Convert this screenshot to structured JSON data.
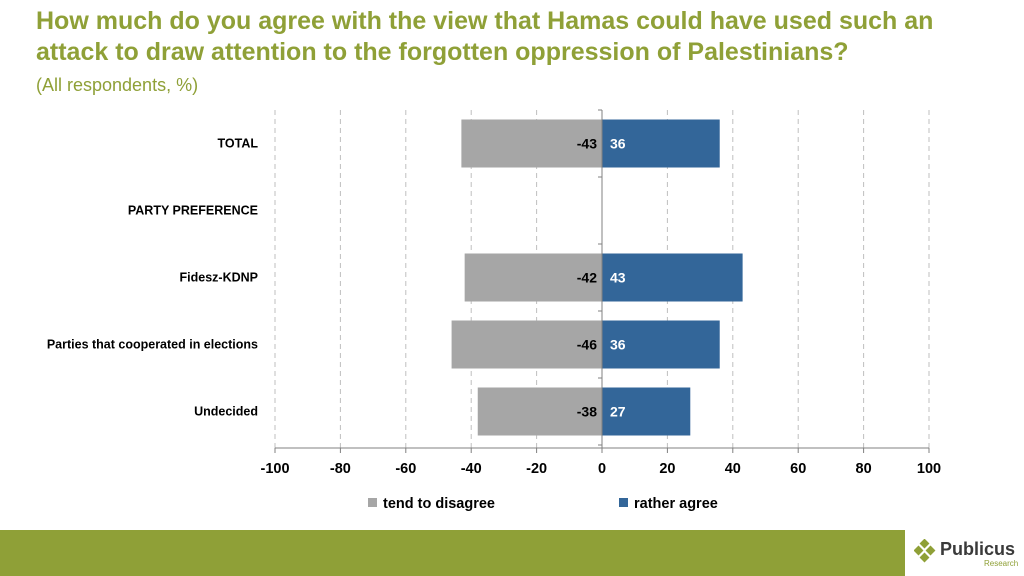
{
  "title": "How much do you agree with the view that Hamas could have used such an attack to draw attention to the forgotten oppression of Palestinians?",
  "subtitle": "(All respondents, %)",
  "colors": {
    "title": "#8fa037",
    "disagree": "#a6a6a6",
    "agree": "#336699",
    "footer": "#8fa037"
  },
  "chart_data": {
    "type": "bar",
    "orientation": "horizontal",
    "stacked": "diverging",
    "categories": [
      "TOTAL",
      "PARTY PREFERENCE",
      "Fidesz-KDNP",
      "Parties that cooperated in elections",
      "Undecided"
    ],
    "series": [
      {
        "name": "tend to disagree",
        "values": [
          -43,
          null,
          -42,
          -46,
          -38
        ],
        "color": "#a6a6a6"
      },
      {
        "name": "rather agree",
        "values": [
          36,
          null,
          43,
          36,
          27
        ],
        "color": "#336699"
      }
    ],
    "xlim": [
      -100,
      100
    ],
    "xticks": [
      -100,
      -80,
      -60,
      -40,
      -20,
      0,
      20,
      40,
      60,
      80,
      100
    ],
    "grid": "vertical dashed",
    "legend_position": "bottom"
  },
  "logo": {
    "name": "Publicus",
    "sub": "Research"
  }
}
